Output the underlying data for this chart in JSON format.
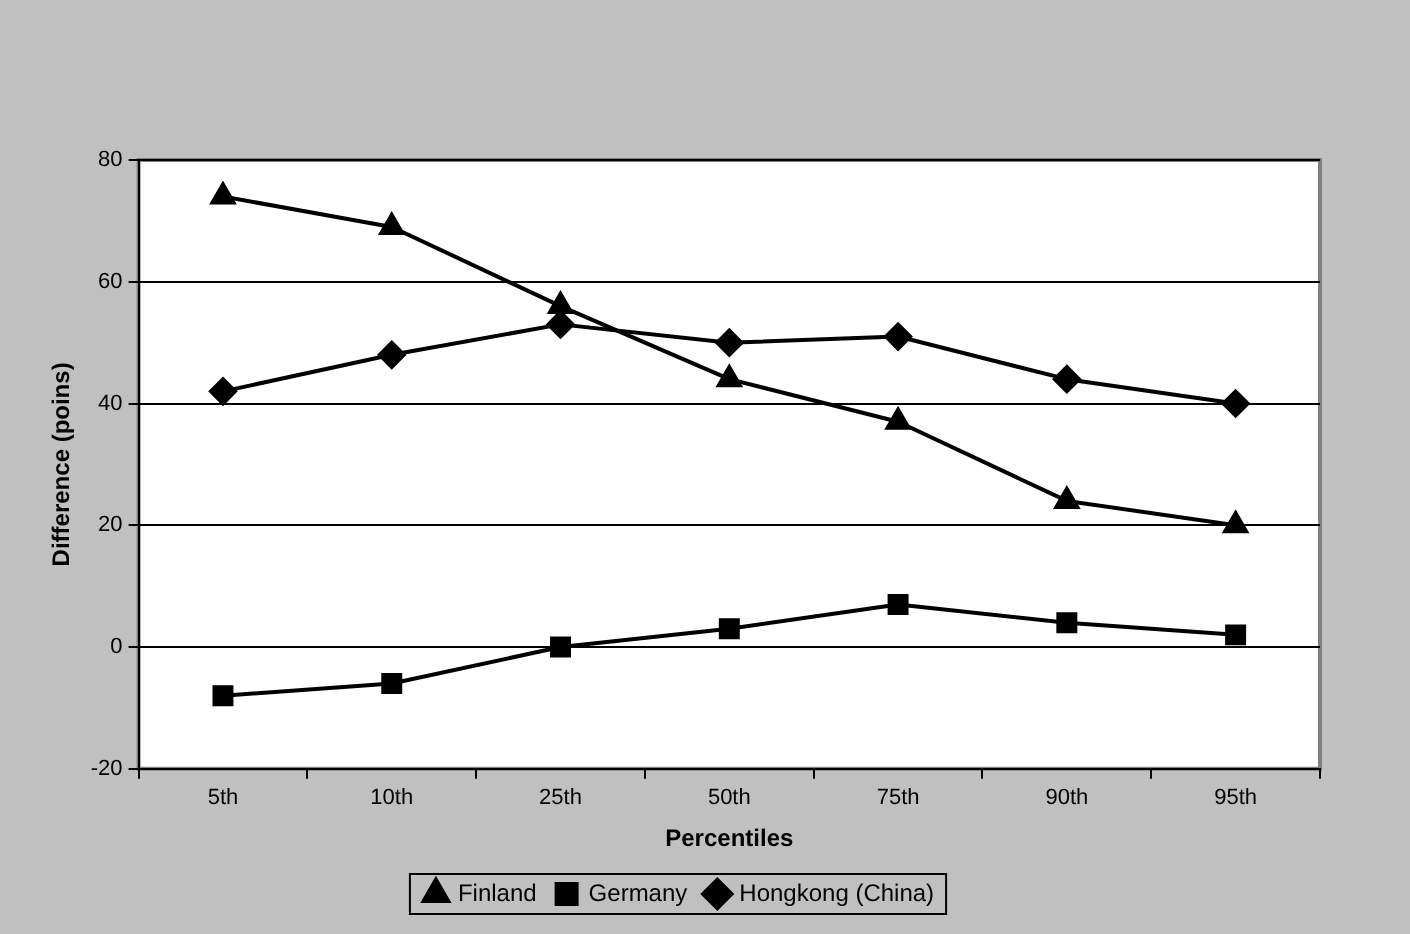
{
  "chart_data": {
    "type": "line",
    "xlabel": "Percentiles",
    "ylabel": "Difference (poins)",
    "categories": [
      "5th",
      "10th",
      "25th",
      "50th",
      "75th",
      "90th",
      "95th"
    ],
    "series": [
      {
        "name": "Finland",
        "color": "#000000",
        "marker": "triangle",
        "values": [
          74,
          69,
          56,
          44,
          37,
          24,
          20
        ]
      },
      {
        "name": "Germany",
        "color": "#000000",
        "marker": "square",
        "values": [
          -8,
          -6,
          0,
          3,
          7,
          4,
          2
        ]
      },
      {
        "name": "Hongkong (China)",
        "color": "#000000",
        "marker": "diamond",
        "values": [
          42,
          48,
          53,
          50,
          51,
          44,
          40
        ]
      }
    ],
    "ylim": [
      -20,
      80
    ],
    "yticks": [
      -20,
      0,
      20,
      40,
      60,
      80
    ],
    "grid": "y",
    "legend": "bottom",
    "line_style": "solid"
  }
}
